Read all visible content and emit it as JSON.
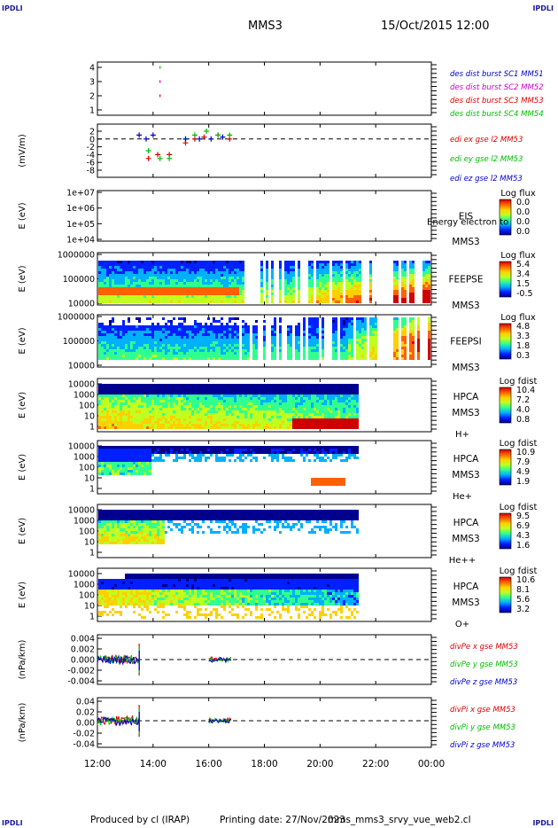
{
  "corner_label": "IPDLI",
  "header": {
    "spacecraft": "MMS3",
    "datetime": "15/Oct/2015 12:00"
  },
  "footer": {
    "produced": "Produced by cl (IRAP)",
    "printing": "Printing date: 27/Nov/2023",
    "file": "mms_mms3_srvy_vue_web2.cl"
  },
  "colors": {
    "spectrogram_scale": [
      "#00008f",
      "#0020ff",
      "#00b0ff",
      "#30ff90",
      "#c0ff20",
      "#ffd000",
      "#ff6000",
      "#d00000"
    ],
    "sc1": "#0000cc",
    "sc2": "#cc00cc",
    "sc3": "#dd0000",
    "sc4": "#00bb00"
  },
  "chart_data": [
    {
      "type": "scatter",
      "ylabel": "",
      "yticks": [
        "4",
        "3",
        "2",
        "1"
      ],
      "ylim": [
        1,
        4
      ],
      "xlim": [
        "12:00",
        "00:00"
      ],
      "legend_position": "right",
      "series": [
        {
          "name": "des dist burst SC1 MM51",
          "points": []
        },
        {
          "name": "des dist burst SC2 MM52",
          "points": [
            [
              "14:15",
              3
            ]
          ]
        },
        {
          "name": "des dist burst SC3 MM53",
          "points": [
            [
              "14:15",
              2
            ]
          ]
        },
        {
          "name": "des dist burst SC4 MM54",
          "points": [
            [
              "14:15",
              4
            ]
          ]
        }
      ]
    },
    {
      "type": "scatter",
      "ylabel": "(mV/m)",
      "yticks": [
        "2",
        "0",
        "-2",
        "-4",
        "-6",
        "-8"
      ],
      "ylim": [
        -8,
        2
      ],
      "xlim": [
        "12:00",
        "00:00"
      ],
      "legend_position": "right",
      "series": [
        {
          "name": "edi ex gse l2 MM53",
          "points": [
            [
              "13:50",
              -5
            ],
            [
              "14:10",
              -4
            ],
            [
              "14:35",
              -4
            ],
            [
              "15:10",
              -1
            ],
            [
              "15:30",
              0
            ],
            [
              "15:50",
              0.5
            ],
            [
              "16:20",
              1
            ],
            [
              "16:45",
              0
            ]
          ]
        },
        {
          "name": "edi ey gse l2 MM53",
          "points": [
            [
              "13:50",
              -3
            ],
            [
              "14:15",
              -5
            ],
            [
              "14:35",
              -5
            ],
            [
              "15:10",
              0
            ],
            [
              "15:30",
              1
            ],
            [
              "15:55",
              2
            ],
            [
              "16:20",
              1
            ],
            [
              "16:45",
              1
            ]
          ]
        },
        {
          "name": "edi ez gse l2 MM53",
          "points": [
            [
              "13:30",
              1
            ],
            [
              "13:45",
              0
            ],
            [
              "14:00",
              1
            ],
            [
              "15:10",
              0
            ],
            [
              "15:40",
              0
            ],
            [
              "16:05",
              0
            ],
            [
              "16:30",
              0.5
            ]
          ]
        }
      ]
    },
    {
      "type": "heatmap",
      "ylabel": "E (eV)",
      "yticks": [
        "1e+07",
        "1e+06",
        "1e+05",
        "1e+04"
      ],
      "instrument": "EIS",
      "instrument_sub": "MMS3",
      "overlay_text": "Energy electron to",
      "colorbar_title": "Log flux",
      "colorbar_ticks": [
        "0.0",
        "0.0",
        "0.0",
        "0.0"
      ],
      "coverage": []
    },
    {
      "type": "heatmap",
      "ylabel": "E (eV)",
      "yticks": [
        "1000000",
        "100000",
        "10000"
      ],
      "instrument": "FEEPSE",
      "instrument_sub": "MMS3",
      "colorbar_title": "Log flux",
      "colorbar_ticks": [
        "5.4",
        "3.4",
        "1.5",
        "-0.5"
      ],
      "coverage": [
        [
          "12:00",
          "00:00"
        ]
      ]
    },
    {
      "type": "heatmap",
      "ylabel": "E (eV)",
      "yticks": [
        "1000000",
        "100000",
        "10000"
      ],
      "instrument": "FEEPSI",
      "instrument_sub": "MMS3",
      "colorbar_title": "Log flux",
      "colorbar_ticks": [
        "4.8",
        "3.3",
        "1.8",
        "0.3"
      ],
      "coverage": [
        [
          "12:00",
          "00:00"
        ]
      ]
    },
    {
      "type": "heatmap",
      "ylabel": "E (eV)",
      "yticks": [
        "10000",
        "1000",
        "100",
        "10",
        "1"
      ],
      "instrument": "HPCA",
      "instrument_sub": "MMS3",
      "species": "H+",
      "colorbar_title": "Log fdist",
      "colorbar_ticks": [
        "10.4",
        "7.2",
        "4.0",
        "0.8"
      ],
      "coverage": [
        [
          "12:00",
          "21:20"
        ]
      ]
    },
    {
      "type": "heatmap",
      "ylabel": "E (eV)",
      "yticks": [
        "10000",
        "1000",
        "100",
        "10",
        "1"
      ],
      "instrument": "HPCA",
      "instrument_sub": "MMS3",
      "species": "He+",
      "colorbar_title": "Log fdist",
      "colorbar_ticks": [
        "10.9",
        "7.9",
        "4.9",
        "1.9"
      ],
      "coverage": [
        [
          "12:00",
          "21:20"
        ]
      ]
    },
    {
      "type": "heatmap",
      "ylabel": "E (eV)",
      "yticks": [
        "10000",
        "1000",
        "100",
        "10",
        "1"
      ],
      "instrument": "HPCA",
      "instrument_sub": "MMS3",
      "species": "He++",
      "colorbar_title": "Log fdist",
      "colorbar_ticks": [
        "9.5",
        "6.9",
        "4.3",
        "1.6"
      ],
      "coverage": [
        [
          "12:00",
          "21:20"
        ]
      ]
    },
    {
      "type": "heatmap",
      "ylabel": "E (eV)",
      "yticks": [
        "10000",
        "1000",
        "100",
        "10",
        "1"
      ],
      "instrument": "HPCA",
      "instrument_sub": "MMS3",
      "species": "O+",
      "colorbar_title": "Log fdist",
      "colorbar_ticks": [
        "10.6",
        "8.1",
        "5.6",
        "3.2"
      ],
      "coverage": [
        [
          "12:00",
          "21:20"
        ]
      ]
    },
    {
      "type": "line",
      "ylabel": "(nPa/km)",
      "yticks": [
        "0.004",
        "0.002",
        "0.000",
        "-0.002",
        "-0.004"
      ],
      "ylim": [
        -0.005,
        0.005
      ],
      "legend_position": "right",
      "series": [
        {
          "name": "divPe x gse MM53",
          "segments": [
            [
              "12:00",
              "13:30"
            ],
            [
              "16:00",
              "16:50"
            ]
          ]
        },
        {
          "name": "divPe y gse MM53",
          "segments": [
            [
              "12:00",
              "13:30"
            ],
            [
              "16:00",
              "16:50"
            ]
          ]
        },
        {
          "name": "divPe z gse MM53",
          "segments": [
            [
              "12:00",
              "13:30"
            ],
            [
              "16:00",
              "16:50"
            ]
          ]
        }
      ]
    },
    {
      "type": "line",
      "ylabel": "(nPa/km)",
      "yticks": [
        "0.04",
        "0.02",
        "0.00",
        "-0.02",
        "-0.04"
      ],
      "ylim": [
        -0.05,
        0.05
      ],
      "legend_position": "right",
      "series": [
        {
          "name": "divPi x gse MM53",
          "segments": [
            [
              "12:00",
              "13:30"
            ],
            [
              "16:00",
              "16:50"
            ]
          ]
        },
        {
          "name": "divPi y gse MM53",
          "segments": [
            [
              "12:00",
              "13:30"
            ],
            [
              "16:00",
              "16:50"
            ]
          ]
        },
        {
          "name": "divPi z gse MM53",
          "segments": [
            [
              "12:00",
              "13:30"
            ],
            [
              "16:00",
              "16:50"
            ]
          ]
        }
      ]
    }
  ],
  "x_axis": {
    "ticks": [
      "12:00",
      "14:00",
      "16:00",
      "18:00",
      "20:00",
      "22:00",
      "00:00"
    ]
  }
}
